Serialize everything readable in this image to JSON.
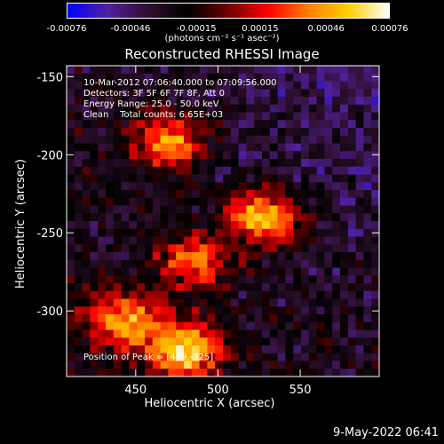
{
  "timestamp": "9-May-2022 06:41",
  "chart_data": {
    "type": "heatmap",
    "title": "Reconstructed RHESSI Image",
    "xlabel": "Heliocentric X (arcsec)",
    "ylabel": "Heliocentric Y (arcsec)",
    "xlim": [
      408,
      598
    ],
    "ylim": [
      -342,
      -143
    ],
    "xticks": [
      450,
      500,
      550
    ],
    "yticks": [
      -150,
      -200,
      -250,
      -300
    ],
    "colorbar": {
      "range": [
        -0.00076,
        0.00076
      ],
      "tick_values": [
        -0.00076,
        -0.00046,
        -0.00015,
        0.00015,
        0.00046,
        0.00076
      ],
      "tick_labels": [
        "-0.00076",
        "-0.00046",
        "-0.00015",
        "0.00015",
        "0.00046",
        "0.00076"
      ],
      "units": "(photons cm⁻² s⁻¹ asec⁻²)",
      "colormap": [
        "#0000ff",
        "#5020a0",
        "#301030",
        "#000000",
        "#700000",
        "#ff0000",
        "#ff8000",
        "#ffd000",
        "#ffffff"
      ]
    },
    "annotations": [
      "10-Mar-2012 07:06:40.000 to 07:09:56.000",
      "Detectors: 3F 5F 6F 7F 8F, Att 0",
      "Energy Range: 25.0 - 50.0 keV",
      "Clean    Total counts: 6.65E+03"
    ],
    "peak_label": "Position of Peak = [479,-325]",
    "bright_sources": [
      {
        "x": 470,
        "y": -192,
        "value": 0.0006
      },
      {
        "x": 528,
        "y": -240,
        "value": 0.0007
      },
      {
        "x": 485,
        "y": -268,
        "value": 0.0005
      },
      {
        "x": 479,
        "y": -325,
        "value": 0.00076
      },
      {
        "x": 442,
        "y": -305,
        "value": 0.0006
      }
    ]
  }
}
